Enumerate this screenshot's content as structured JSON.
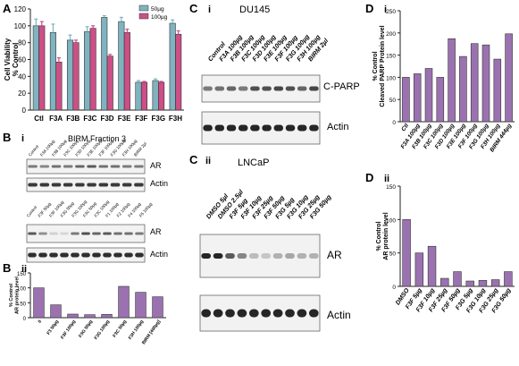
{
  "colors": {
    "bar_purple": "#9b72b0",
    "bar_teal": "#7fb3c0",
    "bar_pink": "#cc4f86",
    "blot_bg": "#f2f2f2",
    "blot_band": "#1a1a1a"
  },
  "panel_letters": {
    "A": "A",
    "B": "B",
    "C": "C",
    "D": "D",
    "Bi": "i",
    "Bii": "ii",
    "Ci": "i",
    "Cii": "ii",
    "Di": "i",
    "Dii": "ii"
  },
  "blot_labels": {
    "birm_fraction": "BIRM Fraction 3",
    "du145": "DU145",
    "lncap": "LNCaP",
    "ar": "AR",
    "actin": "Actin",
    "c_parp": "C-PARP"
  },
  "blot_lanes": {
    "bi_top": [
      "Control",
      "F3A 100µg",
      "F3B 100µg",
      "F3C 100µg",
      "F3D 100µg",
      "F3E 100µg",
      "F3F 100µg",
      "F3G 100µg",
      "F3H 100µg",
      "BIRM 2µl"
    ],
    "bi_bottom": [
      "Control",
      "F3F 50µg",
      "F3F 100µg",
      "F3G 50µg",
      "F3G 100µg",
      "F3C 50µg",
      "F3C 100µg",
      "F1 100µg",
      "F2 100µg",
      "F4 100µg",
      "F5 100µg"
    ],
    "ci": [
      "Control",
      "F3A 100µg",
      "F3B 100µg",
      "F3C 100µg",
      "F3D 100µg",
      "F3E 100µg",
      "F3F 100µg",
      "F3G 100µg",
      "F3H 100µg",
      "BIRM 2µl"
    ],
    "cii": [
      "DMSO 5µl",
      "DMSO 2.5µl",
      "F3F 5µg",
      "F3F 10µg",
      "F3F 25µg",
      "F3F 50µg",
      "F3G 5µg",
      "F3G 10µg",
      "F3G 25µg",
      "F3G 50µg"
    ]
  },
  "chart_data": [
    {
      "id": "A",
      "type": "bar",
      "categories": [
        "Ctl",
        "F3A",
        "F3B",
        "F3C",
        "F3D",
        "F3E",
        "F3F",
        "F3G",
        "F3H"
      ],
      "series": [
        {
          "name": "50µg",
          "values": [
            100,
            92,
            83,
            93,
            110,
            105,
            33,
            35,
            103
          ],
          "errors": [
            8,
            10,
            6,
            6,
            2,
            5,
            2,
            2,
            4
          ]
        },
        {
          "name": "100µg",
          "values": [
            100,
            57,
            80,
            97,
            64,
            92,
            33,
            33,
            90
          ],
          "errors": [
            5,
            5,
            3,
            3,
            2,
            4,
            1,
            1,
            4
          ]
        }
      ],
      "ylabel": "Cell Viability\n% Control",
      "ylim": [
        0,
        120
      ],
      "yticks": [
        0,
        20,
        40,
        60,
        80,
        100,
        120
      ],
      "legend": "top-right"
    },
    {
      "id": "Bii",
      "type": "bar",
      "categories": [
        "0",
        "F3 50µg",
        "F3F 100µg",
        "F3G 50µg",
        "F3G 100µg",
        "F3C 50µg",
        "F3H 100µg",
        "BIRM [400µg]"
      ],
      "values": [
        100,
        43,
        12,
        10,
        11,
        105,
        85,
        70
      ],
      "ylabel": "% Control\nAR protein level",
      "ylim": [
        0,
        150
      ],
      "yticks": [
        0,
        50,
        100,
        150
      ]
    },
    {
      "id": "Di",
      "type": "bar",
      "categories": [
        "Ctl",
        "F3A 100µg",
        "F3B 100µg",
        "F3C 100µg",
        "F3D 100µg",
        "F3E 100µg",
        "F3F 100µg",
        "F3G 100µg",
        "F3H 100µg",
        "BIRM 444µg"
      ],
      "values": [
        100,
        108,
        120,
        100,
        187,
        147,
        176,
        173,
        141,
        198
      ],
      "ylabel": "% Control\nCleaved PARP Protein level",
      "ylim": [
        0,
        250
      ],
      "yticks": [
        0,
        50,
        100,
        150,
        200,
        250
      ]
    },
    {
      "id": "Dii",
      "type": "bar",
      "categories": [
        "DMSO",
        "F3F 5µg",
        "F3F 10µg",
        "F3F 25µg",
        "F3F 50µg",
        "F3G 5µg",
        "F3G 10µg",
        "F3G 25µg",
        "F3G 50µg"
      ],
      "values": [
        100,
        50,
        60,
        12,
        22,
        8,
        9,
        10,
        22
      ],
      "ylabel": "% Control\nAR protein level",
      "ylim": [
        0,
        150
      ],
      "yticks": [
        0,
        50,
        100,
        150
      ]
    }
  ]
}
